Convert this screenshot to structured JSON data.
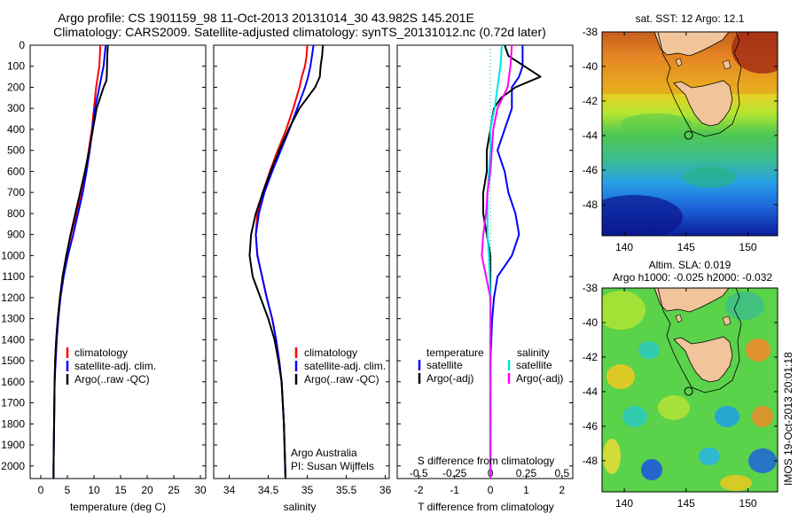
{
  "header": {
    "title_line1": "Argo profile: CS 1901159_98 11-Oct-2013 20131014_30 43.982S 145.201E",
    "title_line2": "Climatology: CARS2009. Satellite-adjusted climatology: synTS_20131012.nc (0.72d later)"
  },
  "watermark": "IMOS 19-Oct-2013 20:01:18",
  "colors": {
    "climatology": "#ff0000",
    "satellite": "#0000ff",
    "argo": "#000000",
    "sat_s": "#00e5e5",
    "argo_s": "#ff00ff"
  },
  "chart_data": [
    {
      "type": "line",
      "xlabel": "temperature (deg C)",
      "ylabel": "",
      "xlim": [
        -2,
        31
      ],
      "ylim": [
        2060,
        0
      ],
      "xticks": [
        "0",
        "5",
        "10",
        "15",
        "20",
        "25",
        "30"
      ],
      "yticks": [
        "0",
        "100",
        "200",
        "300",
        "400",
        "500",
        "600",
        "700",
        "800",
        "900",
        "1000",
        "1100",
        "1200",
        "1300",
        "1400",
        "1500",
        "1600",
        "1700",
        "1800",
        "1900",
        "2000"
      ],
      "legend": [
        "climatology",
        "satellite-adj. clim.",
        "Argo(..raw -QC)"
      ],
      "series": [
        {
          "name": "climatology",
          "color": "#ff0000",
          "x": [
            11.2,
            11.1,
            11,
            10.7,
            10.4,
            10,
            9.6,
            9,
            8.4,
            7.6,
            6.7,
            5.7,
            4.8,
            4.1,
            3.6,
            3.2,
            2.9,
            2.7,
            2.6,
            2.5,
            2.4,
            2.4
          ],
          "y": [
            0,
            50,
            100,
            150,
            200,
            300,
            400,
            500,
            600,
            700,
            800,
            900,
            1000,
            1100,
            1200,
            1300,
            1400,
            1500,
            1600,
            1800,
            2000,
            2060
          ]
        },
        {
          "name": "satellite-adj. clim.",
          "color": "#0000ff",
          "x": [
            12.2,
            12,
            11.8,
            11.4,
            11,
            10.2,
            9.7,
            9.2,
            8.6,
            7.9,
            7,
            6.1,
            5.1,
            4.3,
            3.7,
            3.3,
            3,
            2.8,
            2.6,
            2.5,
            2.4,
            2.4
          ],
          "y": [
            0,
            50,
            100,
            150,
            200,
            300,
            400,
            500,
            600,
            700,
            800,
            900,
            1000,
            1100,
            1200,
            1300,
            1400,
            1500,
            1600,
            1800,
            2000,
            2060
          ]
        },
        {
          "name": "Argo(..raw -QC)",
          "color": "#000000",
          "x": [
            12.6,
            12.5,
            12.4,
            12.3,
            11.8,
            10.5,
            9.8,
            9.1,
            8.3,
            7.4,
            6.5,
            5.6,
            4.8,
            4.1,
            3.6,
            3.2,
            2.9,
            2.7,
            2.6,
            2.5,
            2.4,
            2.4
          ],
          "y": [
            0,
            50,
            150,
            170,
            200,
            300,
            400,
            500,
            600,
            700,
            800,
            900,
            1000,
            1100,
            1200,
            1300,
            1400,
            1500,
            1600,
            1800,
            2000,
            2060
          ]
        }
      ]
    },
    {
      "type": "line",
      "xlabel": "salinity",
      "xlim": [
        33.8,
        36.05
      ],
      "ylim": [
        2060,
        0
      ],
      "xticks": [
        "34",
        "34.5",
        "35",
        "35.5",
        "36"
      ],
      "legend": [
        "climatology",
        "satellite-adj. clim.",
        "Argo(..raw -QC)"
      ],
      "annotation": [
        "Argo Australia",
        "PI: Susan Wijffels"
      ],
      "series": [
        {
          "name": "climatology",
          "color": "#ff0000",
          "x": [
            35,
            34.99,
            34.97,
            34.93,
            34.9,
            34.82,
            34.73,
            34.62,
            34.52,
            34.43,
            34.36,
            34.34,
            34.36,
            34.42,
            34.48,
            34.55,
            34.6,
            34.64,
            34.67,
            34.7,
            34.72
          ],
          "y": [
            0,
            50,
            100,
            150,
            200,
            300,
            400,
            500,
            600,
            700,
            800,
            900,
            1000,
            1100,
            1200,
            1300,
            1400,
            1500,
            1600,
            1800,
            2060
          ]
        },
        {
          "name": "satellite-adj. clim.",
          "color": "#0000ff",
          "x": [
            35.08,
            35.06,
            35.04,
            35.01,
            34.97,
            34.87,
            34.77,
            34.66,
            34.55,
            34.45,
            34.38,
            34.34,
            34.36,
            34.42,
            34.48,
            34.55,
            34.6,
            34.64,
            34.67,
            34.7,
            34.72
          ],
          "y": [
            0,
            50,
            100,
            150,
            200,
            300,
            400,
            500,
            600,
            700,
            800,
            900,
            1000,
            1100,
            1200,
            1300,
            1400,
            1500,
            1600,
            1800,
            2060
          ]
        },
        {
          "name": "Argo(..raw -QC)",
          "color": "#000000",
          "x": [
            35.2,
            35.19,
            35.17,
            35.16,
            35.1,
            34.9,
            34.76,
            34.64,
            34.53,
            34.43,
            34.34,
            34.28,
            34.26,
            34.3,
            34.4,
            34.5,
            34.58,
            34.63,
            34.67,
            34.7,
            34.72
          ],
          "y": [
            0,
            50,
            100,
            150,
            200,
            300,
            400,
            500,
            600,
            700,
            800,
            900,
            1000,
            1100,
            1200,
            1300,
            1400,
            1500,
            1600,
            1800,
            2060
          ]
        }
      ]
    },
    {
      "type": "line",
      "xlabel": "T difference from climatology",
      "xlabel_top": "S difference from climatology",
      "xlim": [
        -2.6,
        2.3
      ],
      "ylim": [
        2060,
        0
      ],
      "xticks": [
        "-2",
        "-1",
        "0",
        "1",
        "2"
      ],
      "xticks_s": [
        "-0.5",
        "-0.25",
        "0",
        "0.25",
        "0.5"
      ],
      "xlim_s": [
        -0.65,
        0.575
      ],
      "legend_headers": [
        "temperature",
        "salinity"
      ],
      "legend": [
        "satellite",
        "Argo(-adj)",
        "satellite",
        "Argo(-adj)"
      ],
      "series": [
        {
          "name": "satellite",
          "unit": "T",
          "color": "#0000ff",
          "x": [
            0.9,
            0.9,
            0.8,
            0.6,
            0.6,
            0.4,
            0.2,
            0.4,
            0.5,
            0.7,
            0.8,
            0.6,
            0.2,
            0.1,
            0.05,
            0,
            0,
            0
          ],
          "y": [
            0,
            100,
            150,
            200,
            300,
            400,
            500,
            600,
            700,
            800,
            900,
            1000,
            1100,
            1200,
            1300,
            1500,
            1800,
            2060
          ]
        },
        {
          "name": "Argo(-adj)",
          "unit": "T",
          "color": "#000000",
          "x": [
            0.4,
            0.5,
            1.4,
            0.7,
            0.3,
            0.1,
            0,
            -0.1,
            -0.1,
            -0.2,
            -0.2,
            -0.1,
            0,
            0,
            0,
            0,
            0,
            0
          ],
          "y": [
            0,
            50,
            150,
            200,
            250,
            300,
            400,
            500,
            600,
            700,
            800,
            900,
            1000,
            1100,
            1200,
            1500,
            1800,
            2060
          ]
        },
        {
          "name": "satellite",
          "unit": "S",
          "color": "#00e5e5",
          "x": [
            0.08,
            0.07,
            0.05,
            0.03,
            0,
            0,
            -0.01,
            -0.02,
            -0.02,
            -0.02,
            -0.01,
            0,
            0,
            0,
            0
          ],
          "y": [
            0,
            100,
            200,
            300,
            400,
            500,
            600,
            700,
            800,
            900,
            1000,
            1200,
            1500,
            1800,
            2060
          ]
        },
        {
          "name": "Argo(-adj)",
          "unit": "S",
          "color": "#ff00ff",
          "x": [
            0.15,
            0.14,
            0.12,
            0.05,
            0.02,
            0.01,
            0,
            -0.02,
            -0.03,
            -0.05,
            -0.06,
            -0.03,
            0,
            0,
            0
          ],
          "y": [
            0,
            100,
            200,
            300,
            400,
            500,
            600,
            700,
            800,
            900,
            1000,
            1100,
            1200,
            1500,
            2060
          ]
        }
      ]
    }
  ],
  "maps": [
    {
      "title": "sat. SST: 12  Argo: 12.1",
      "title2": "",
      "xticks": [
        "140",
        "145",
        "150"
      ],
      "yticks": [
        "-38",
        "-40",
        "-42",
        "-44",
        "-46",
        "-48"
      ],
      "xlim": [
        138.2,
        152.4
      ],
      "ylim": [
        -49.8,
        -38
      ],
      "argo_position": [
        145.2,
        -43.98
      ],
      "colors": {
        "land": "#f2c49b",
        "contour": "#000000"
      }
    },
    {
      "title": "Altim. SLA: 0.019",
      "title2": "Argo h1000: -0.025 h2000: -0.032",
      "xticks": [
        "140",
        "145",
        "150"
      ],
      "yticks": [
        "-38",
        "-40",
        "-42",
        "-44",
        "-46",
        "-48"
      ],
      "xlim": [
        138.2,
        152.4
      ],
      "ylim": [
        -49.8,
        -38
      ],
      "argo_position": [
        145.2,
        -43.98
      ],
      "colors": {
        "land": "#f2c49b",
        "contour": "#000000"
      }
    }
  ]
}
